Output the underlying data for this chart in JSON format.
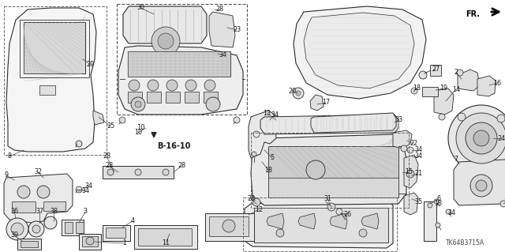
{
  "bg_color": "#ffffff",
  "line_color": "#2a2a2a",
  "diagram_code": "TK64B3715A",
  "ref_code": "B-16-10",
  "fig_width": 6.4,
  "fig_height": 3.19,
  "dpi": 100
}
